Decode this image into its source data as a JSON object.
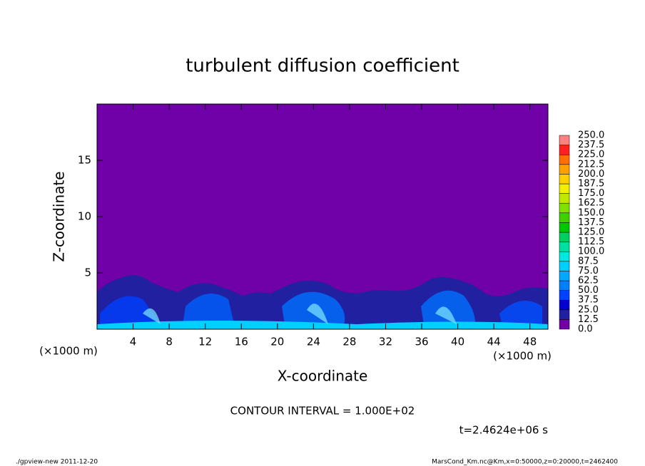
{
  "chart_data": {
    "type": "contour",
    "title": "turbulent diffusion coefficient",
    "x_label": "X-coordinate",
    "y_label": "Z-coordinate",
    "x_unit": "(×1000 m)",
    "y_unit": "(×1000 m)",
    "xlim": [
      0,
      50
    ],
    "ylim": [
      0,
      20
    ],
    "xticks": [
      4,
      8,
      12,
      16,
      20,
      24,
      28,
      32,
      36,
      40,
      44,
      48
    ],
    "yticks": [
      5,
      10,
      15
    ],
    "background_color": "#7000a8",
    "colorbar": {
      "levels": [
        {
          "value": 0,
          "label": "0.0"
        },
        12.5,
        {
          "value": 25,
          "label": "25.0"
        },
        37.5,
        {
          "value": 50,
          "label": "50.0"
        },
        62.5,
        {
          "value": 75,
          "label": "75.0"
        },
        87.5,
        {
          "value": 100,
          "label": "100.0"
        },
        112.5,
        {
          "value": 125,
          "label": "125.0"
        },
        137.5,
        {
          "value": 150,
          "label": "150.0"
        },
        162.5,
        {
          "value": 175,
          "label": "175.0"
        },
        187.5,
        {
          "value": 200,
          "label": "200.0"
        },
        212.5,
        {
          "value": 225,
          "label": "225.0"
        },
        237.5,
        {
          "value": 250,
          "label": "250.0"
        }
      ],
      "colors": [
        "#7000a8",
        "#2020a0",
        "#0000d0",
        "#0040ff",
        "#0080ff",
        "#00a8ff",
        "#00d0ff",
        "#00e8e0",
        "#00e0a0",
        "#00d060",
        "#00c800",
        "#40d000",
        "#80e000",
        "#c0e800",
        "#f0f000",
        "#ffd000",
        "#ffa000",
        "#ff7000",
        "#ff2020",
        "#ff8080"
      ]
    },
    "contour_interval": "CONTOUR INTERVAL = 1.000E+02",
    "time": "t=2.4624e+06 s",
    "footer_left": "./gpview-new  2011-12-20",
    "footer_right": "MarsCond_Km.nc@Km,x=0:50000,z=0:20000,t=2462400"
  }
}
